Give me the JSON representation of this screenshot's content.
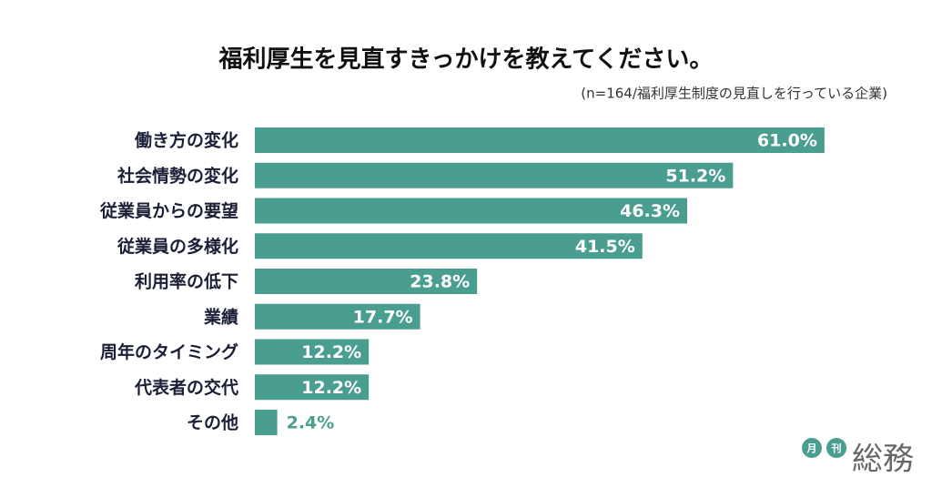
{
  "chart_data": {
    "type": "bar",
    "orientation": "horizontal",
    "title": "福利厚生を見直すきっかけを教えてください。",
    "subtitle": "(n=164/福利厚生制度の見直しを行っている企業)",
    "categories": [
      "働き方の変化",
      "社会情勢の変化",
      "従業員からの要望",
      "従業員の多様化",
      "利用率の低下",
      "業績",
      "周年のタイミング",
      "代表者の交代",
      "その他"
    ],
    "values": [
      61.0,
      51.2,
      46.3,
      41.5,
      23.8,
      17.7,
      12.2,
      12.2,
      2.4
    ],
    "value_labels": [
      "61.0%",
      "51.2%",
      "46.3%",
      "41.5%",
      "23.8%",
      "17.7%",
      "12.2%",
      "12.2%",
      "2.4%"
    ],
    "color": "#4a9e8f"
  },
  "logo": {
    "badges": [
      "月",
      "刊"
    ],
    "name": "総務"
  }
}
